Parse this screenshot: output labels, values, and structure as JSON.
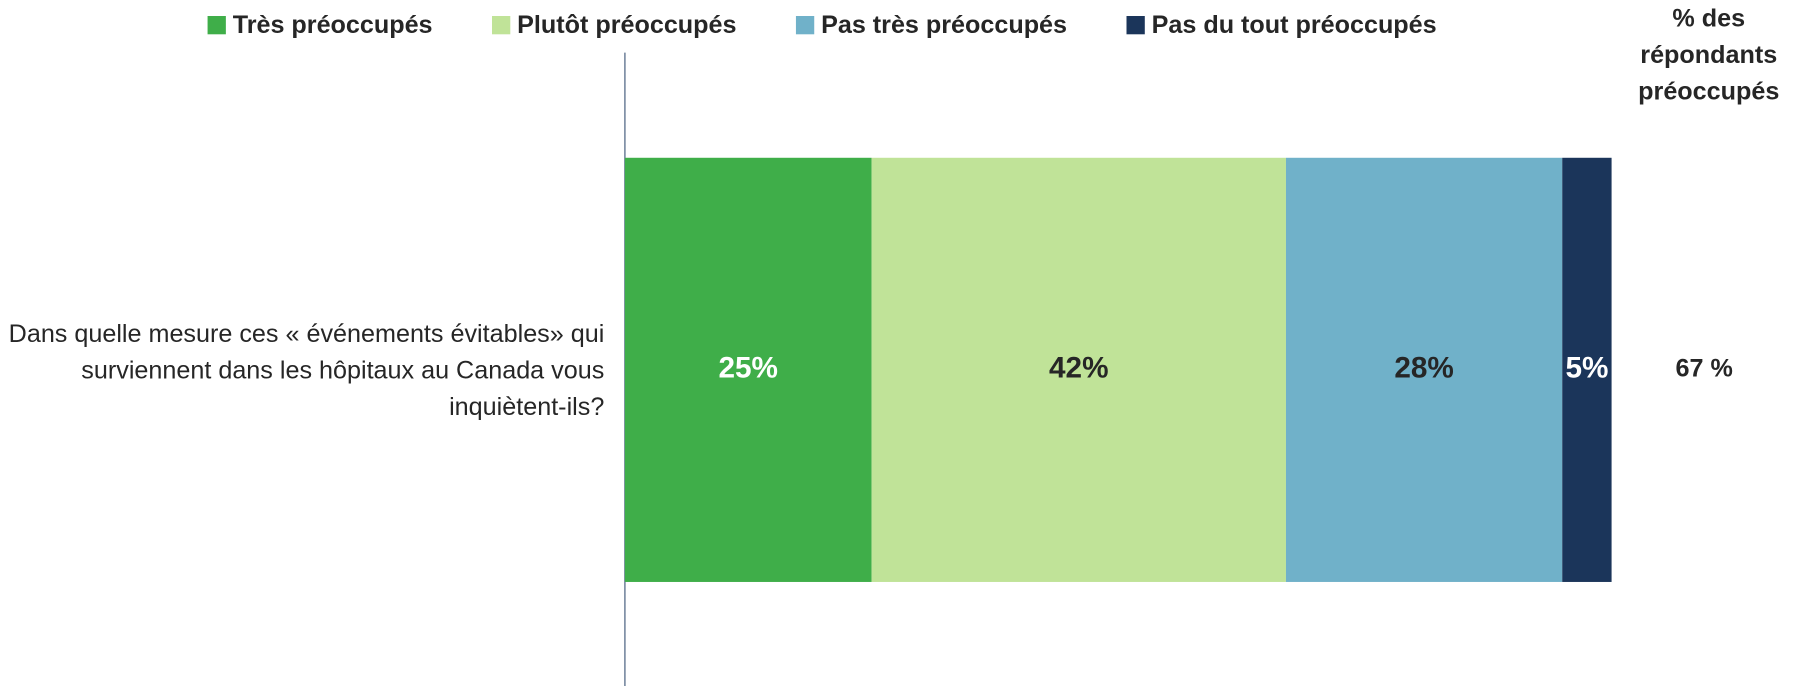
{
  "chart_data": {
    "type": "stacked_barh",
    "categories": [
      "Dans quelle mesure ces « événements évitables» qui surviennent dans les hôpitaux au Canada vous inquiètent-ils?"
    ],
    "series": [
      {
        "name": "Très préoccupés",
        "color": "#3fae49",
        "values": [
          25
        ],
        "value_labels": [
          "25%"
        ]
      },
      {
        "name": "Plutôt préoccupés",
        "color": "#c0e398",
        "values": [
          42
        ],
        "value_labels": [
          "42%"
        ]
      },
      {
        "name": "Pas très préoccupés",
        "color": "#70b1c9",
        "values": [
          28
        ],
        "value_labels": [
          "28%"
        ]
      },
      {
        "name": "Pas du tout préoccupés",
        "color": "#1b355a",
        "values": [
          5
        ],
        "value_labels": [
          "5%"
        ]
      }
    ],
    "xlim": [
      0,
      100
    ],
    "summary_title": "% des répondants préoccupés",
    "summary_values": [
      "67 %"
    ]
  }
}
